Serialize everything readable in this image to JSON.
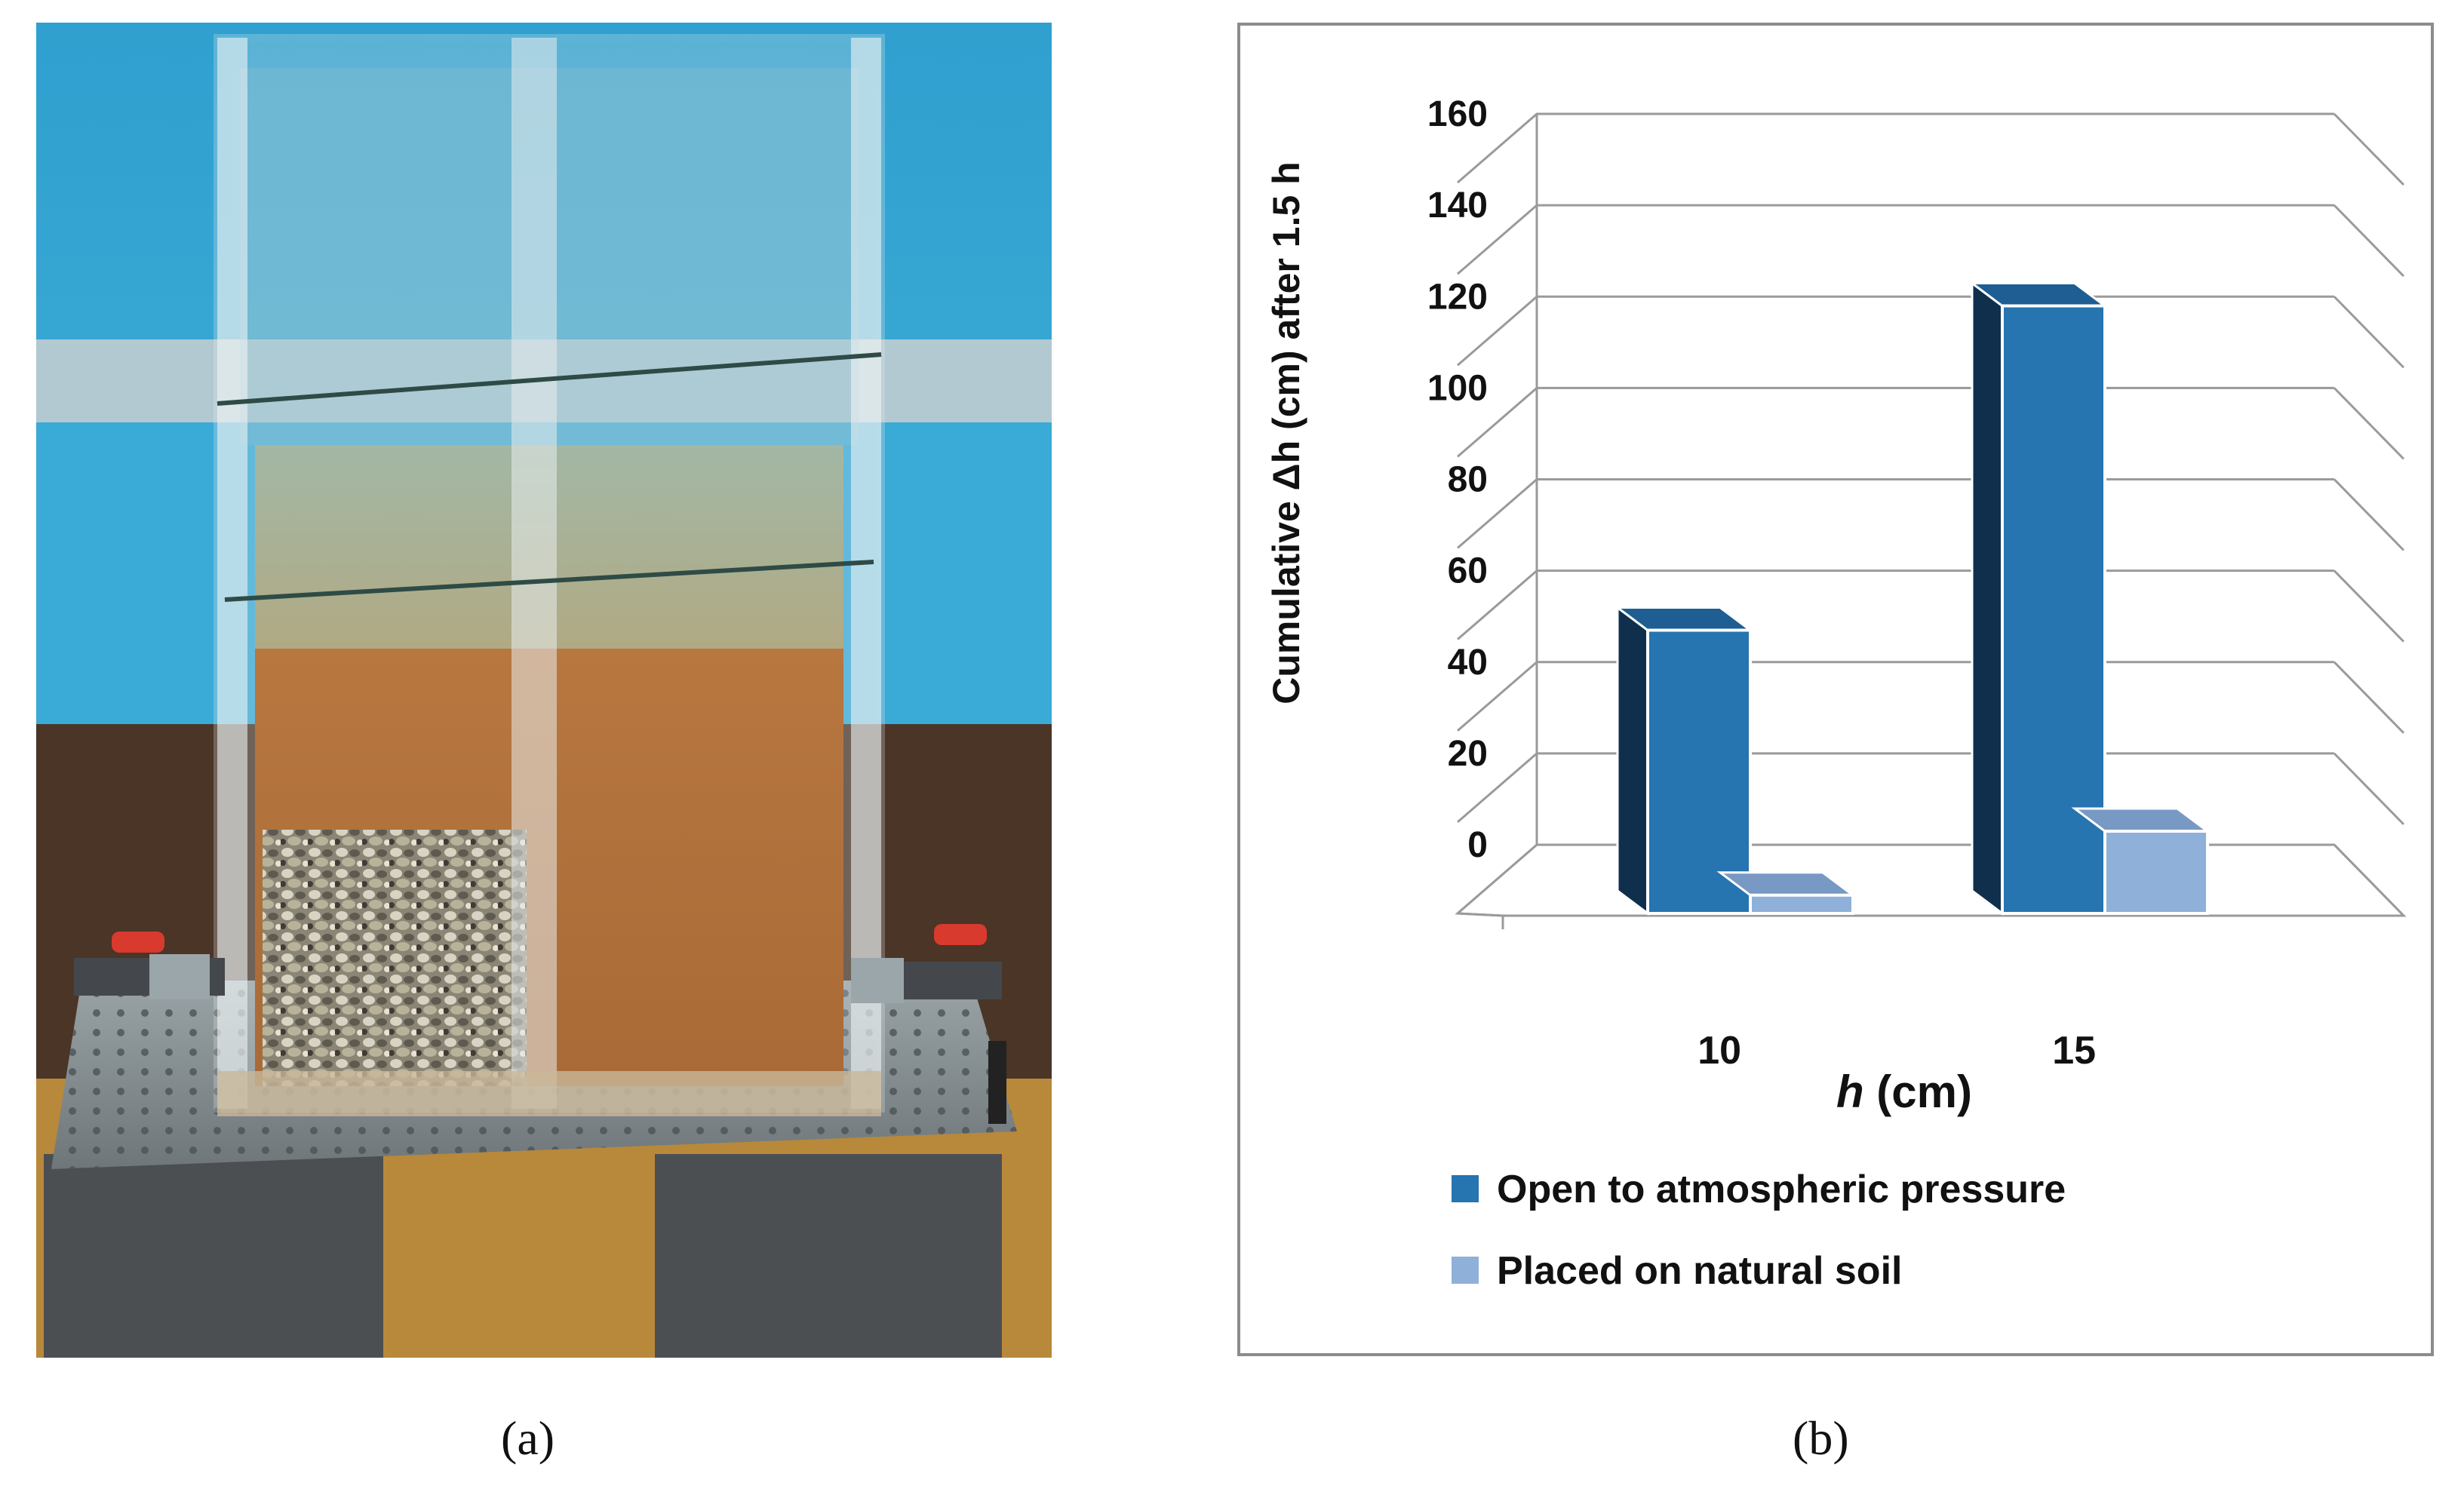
{
  "panels": {
    "a_label": "(a)",
    "b_label": "(b)"
  },
  "chart_data": {
    "type": "bar",
    "categories": [
      "10",
      "15"
    ],
    "series": [
      {
        "name": "Open to atmospheric pressure",
        "values": [
          62,
          133
        ],
        "color": "#2674b0"
      },
      {
        "name": "Placed on natural soil",
        "values": [
          4,
          18
        ],
        "color": "#8fb0d8"
      }
    ],
    "xlabel_italic": "h",
    "xlabel_unit": "(cm)",
    "ylabel": "Cumulative Δh (cm) after  1.5 h",
    "ylim": [
      0,
      160
    ],
    "yticks": [
      0,
      20,
      40,
      60,
      80,
      100,
      120,
      140,
      160
    ],
    "grid": true,
    "style": "3d-bar",
    "legend_position": "bottom"
  }
}
